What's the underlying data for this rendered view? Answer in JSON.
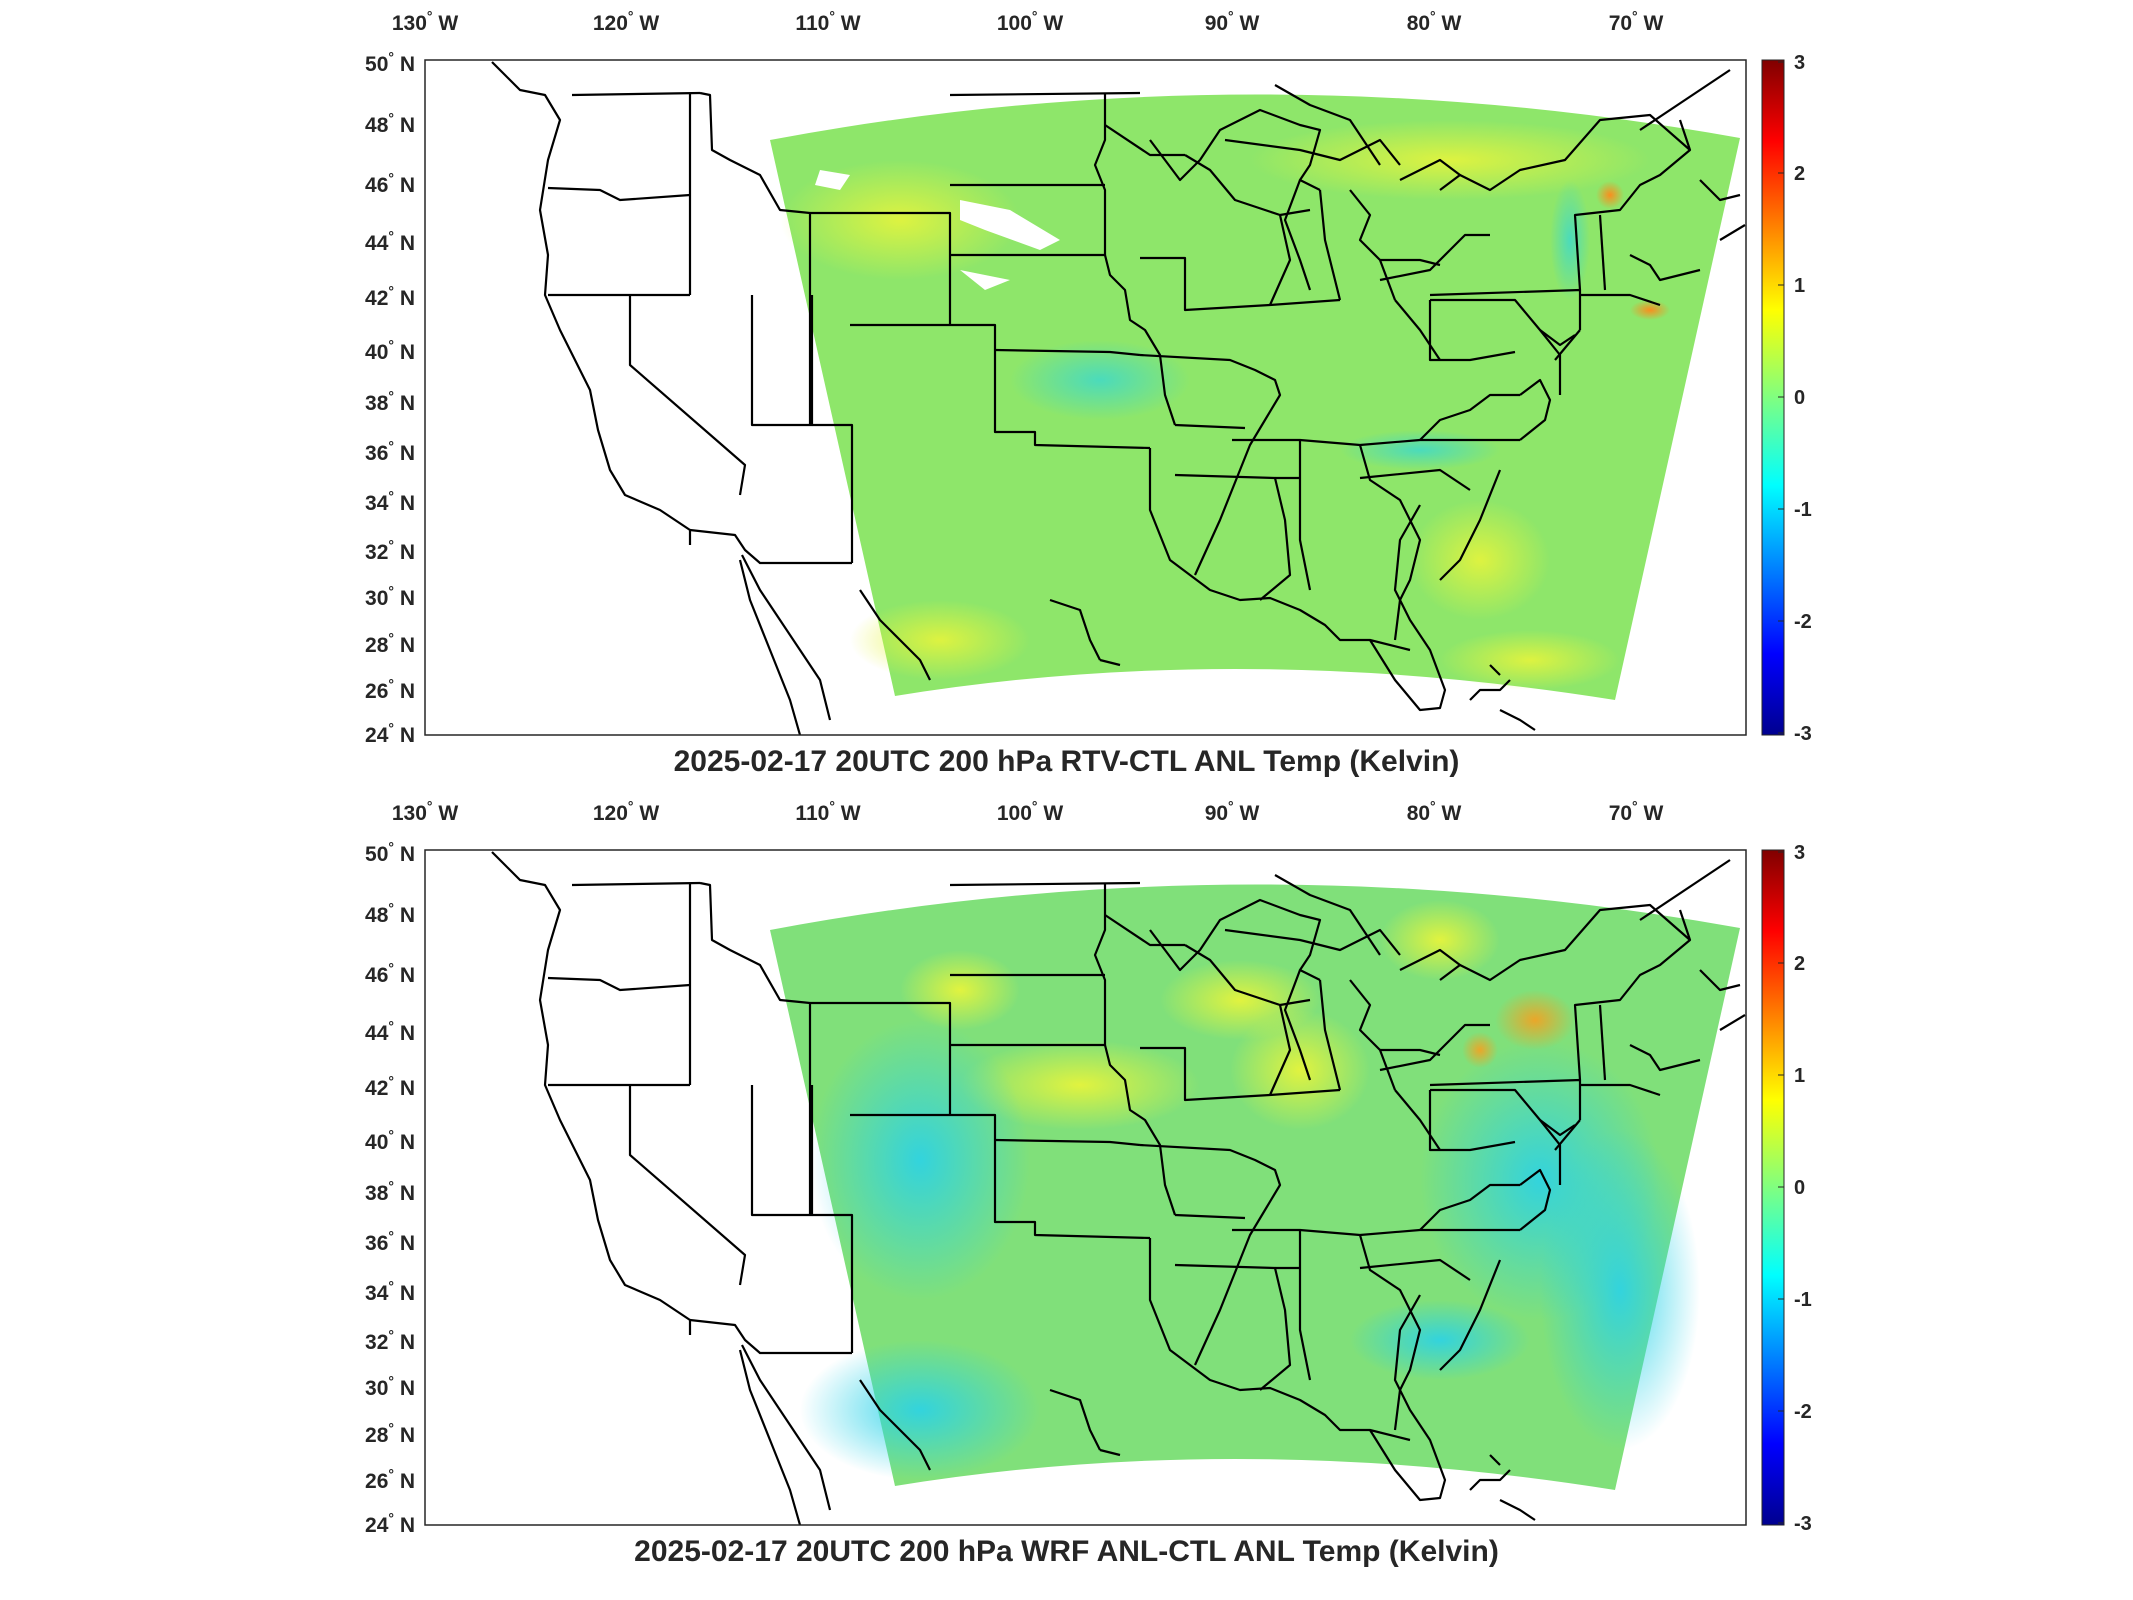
{
  "panels": [
    {
      "title": "2025-02-17 20UTC 200 hPa RTV-CTL ANL Temp (Kelvin)",
      "pattern": "rtv"
    },
    {
      "title": "2025-02-17 20UTC 200 hPa WRF ANL-CTL ANL Temp (Kelvin)",
      "pattern": "wrf"
    }
  ],
  "lon_labels": [
    "130",
    "120",
    "110",
    "100",
    "90",
    "80",
    "70"
  ],
  "lon_suffix": "W",
  "lat_labels": [
    "50",
    "48",
    "46",
    "44",
    "42",
    "40",
    "38",
    "36",
    "34",
    "32",
    "30",
    "28",
    "26",
    "24"
  ],
  "lat_suffix": "N",
  "colorbar": {
    "ticks": [
      "3",
      "2",
      "1",
      "0",
      "-1",
      "-2",
      "-3"
    ],
    "range": [
      -3,
      3
    ],
    "colormap": [
      "#00008f",
      "#0000ff",
      "#00ffff",
      "#80ff80",
      "#ffff00",
      "#ff0000",
      "#800000"
    ]
  },
  "colors": {
    "field_base": "#8ee66a",
    "field_yellow": "#d8f04a",
    "field_cyan": "#4fe0c8",
    "borders": "#000000"
  }
}
